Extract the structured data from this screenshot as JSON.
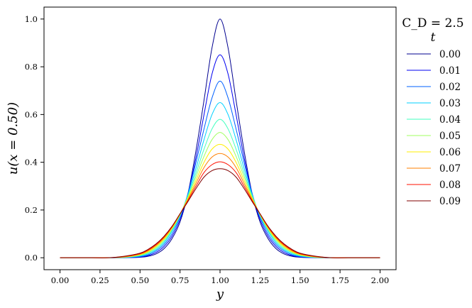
{
  "chart_data": {
    "type": "line",
    "title": "",
    "xlabel": "y",
    "ylabel": "u(x = 0.50)",
    "xlim": [
      -0.1,
      2.1
    ],
    "ylim": [
      -0.05,
      1.05
    ],
    "xticks": [
      "0.00",
      "0.25",
      "0.50",
      "0.75",
      "1.00",
      "1.25",
      "1.50",
      "1.75",
      "2.00"
    ],
    "yticks": [
      "0.0",
      "0.2",
      "0.4",
      "0.6",
      "0.8",
      "1.0"
    ],
    "grid": false,
    "legend": {
      "placement": "outside-right",
      "header": "C_D = 2.5",
      "title": "t"
    },
    "x": [
      0.0,
      0.1,
      0.2,
      0.3,
      0.4,
      0.5,
      0.55,
      0.6,
      0.65,
      0.7,
      0.75,
      0.8,
      0.85,
      0.9,
      0.95,
      1.0,
      1.05,
      1.1,
      1.15,
      1.2,
      1.25,
      1.3,
      1.35,
      1.4,
      1.45,
      1.5,
      1.6,
      1.7,
      1.8,
      1.9,
      2.0
    ],
    "series": [
      {
        "name": "0.00",
        "color": "#00008f",
        "values": [
          0.0,
          0.0,
          0.0,
          0.0,
          0.0,
          0.002,
          0.006,
          0.016,
          0.038,
          0.08,
          0.15,
          0.27,
          0.45,
          0.66,
          0.88,
          1.0,
          0.88,
          0.66,
          0.45,
          0.27,
          0.15,
          0.08,
          0.038,
          0.016,
          0.006,
          0.002,
          0.0,
          0.0,
          0.0,
          0.0,
          0.0
        ]
      },
      {
        "name": "0.01",
        "color": "#0000f0",
        "values": [
          0.0,
          0.0,
          0.0,
          0.0,
          0.0,
          0.003,
          0.009,
          0.022,
          0.047,
          0.09,
          0.16,
          0.27,
          0.42,
          0.6,
          0.77,
          0.85,
          0.77,
          0.6,
          0.42,
          0.27,
          0.16,
          0.09,
          0.047,
          0.022,
          0.009,
          0.003,
          0.0,
          0.0,
          0.0,
          0.0,
          0.0
        ]
      },
      {
        "name": "0.02",
        "color": "#0060ff",
        "values": [
          0.0,
          0.0,
          0.0,
          0.0,
          0.001,
          0.005,
          0.012,
          0.028,
          0.055,
          0.1,
          0.17,
          0.27,
          0.4,
          0.54,
          0.67,
          0.74,
          0.67,
          0.54,
          0.4,
          0.27,
          0.17,
          0.1,
          0.055,
          0.028,
          0.012,
          0.005,
          0.001,
          0.0,
          0.0,
          0.0,
          0.0
        ]
      },
      {
        "name": "0.03",
        "color": "#00d0ff",
        "values": [
          0.0,
          0.0,
          0.0,
          0.0,
          0.001,
          0.007,
          0.016,
          0.033,
          0.062,
          0.11,
          0.175,
          0.265,
          0.375,
          0.495,
          0.6,
          0.65,
          0.6,
          0.495,
          0.375,
          0.265,
          0.175,
          0.11,
          0.062,
          0.033,
          0.016,
          0.007,
          0.001,
          0.0,
          0.0,
          0.0,
          0.0
        ]
      },
      {
        "name": "0.04",
        "color": "#40ffbf",
        "values": [
          0.0,
          0.0,
          0.0,
          0.0,
          0.002,
          0.009,
          0.02,
          0.038,
          0.068,
          0.115,
          0.178,
          0.26,
          0.355,
          0.455,
          0.54,
          0.58,
          0.54,
          0.455,
          0.355,
          0.26,
          0.178,
          0.115,
          0.068,
          0.038,
          0.02,
          0.009,
          0.002,
          0.0,
          0.0,
          0.0,
          0.0
        ]
      },
      {
        "name": "0.05",
        "color": "#a0ff5f",
        "values": [
          0.0,
          0.0,
          0.0,
          0.0,
          0.002,
          0.011,
          0.023,
          0.043,
          0.074,
          0.12,
          0.18,
          0.255,
          0.34,
          0.425,
          0.495,
          0.525,
          0.495,
          0.425,
          0.34,
          0.255,
          0.18,
          0.12,
          0.074,
          0.043,
          0.023,
          0.011,
          0.002,
          0.0,
          0.0,
          0.0,
          0.0
        ]
      },
      {
        "name": "0.06",
        "color": "#ffef00",
        "values": [
          0.0,
          0.0,
          0.0,
          0.0,
          0.003,
          0.013,
          0.026,
          0.047,
          0.079,
          0.124,
          0.182,
          0.25,
          0.325,
          0.4,
          0.455,
          0.475,
          0.455,
          0.4,
          0.325,
          0.25,
          0.182,
          0.124,
          0.079,
          0.047,
          0.026,
          0.013,
          0.003,
          0.0,
          0.0,
          0.0,
          0.0
        ]
      },
      {
        "name": "0.07",
        "color": "#ff8000",
        "values": [
          0.0,
          0.0,
          0.0,
          0.0,
          0.004,
          0.015,
          0.029,
          0.051,
          0.083,
          0.127,
          0.183,
          0.245,
          0.312,
          0.378,
          0.422,
          0.437,
          0.422,
          0.378,
          0.312,
          0.245,
          0.183,
          0.127,
          0.083,
          0.051,
          0.029,
          0.015,
          0.004,
          0.0,
          0.0,
          0.0,
          0.0
        ]
      },
      {
        "name": "0.08",
        "color": "#ff1000",
        "values": [
          0.0,
          0.0,
          0.0,
          0.0,
          0.005,
          0.017,
          0.032,
          0.055,
          0.087,
          0.13,
          0.184,
          0.24,
          0.3,
          0.357,
          0.39,
          0.402,
          0.39,
          0.357,
          0.3,
          0.24,
          0.184,
          0.13,
          0.087,
          0.055,
          0.032,
          0.017,
          0.005,
          0.0,
          0.0,
          0.0,
          0.0
        ]
      },
      {
        "name": "0.09",
        "color": "#800000",
        "values": [
          0.0,
          0.0,
          0.0,
          0.0,
          0.006,
          0.019,
          0.035,
          0.058,
          0.09,
          0.132,
          0.184,
          0.236,
          0.29,
          0.338,
          0.365,
          0.373,
          0.365,
          0.338,
          0.29,
          0.236,
          0.184,
          0.132,
          0.09,
          0.058,
          0.035,
          0.019,
          0.006,
          0.0,
          0.0,
          0.0,
          0.0
        ]
      }
    ]
  }
}
